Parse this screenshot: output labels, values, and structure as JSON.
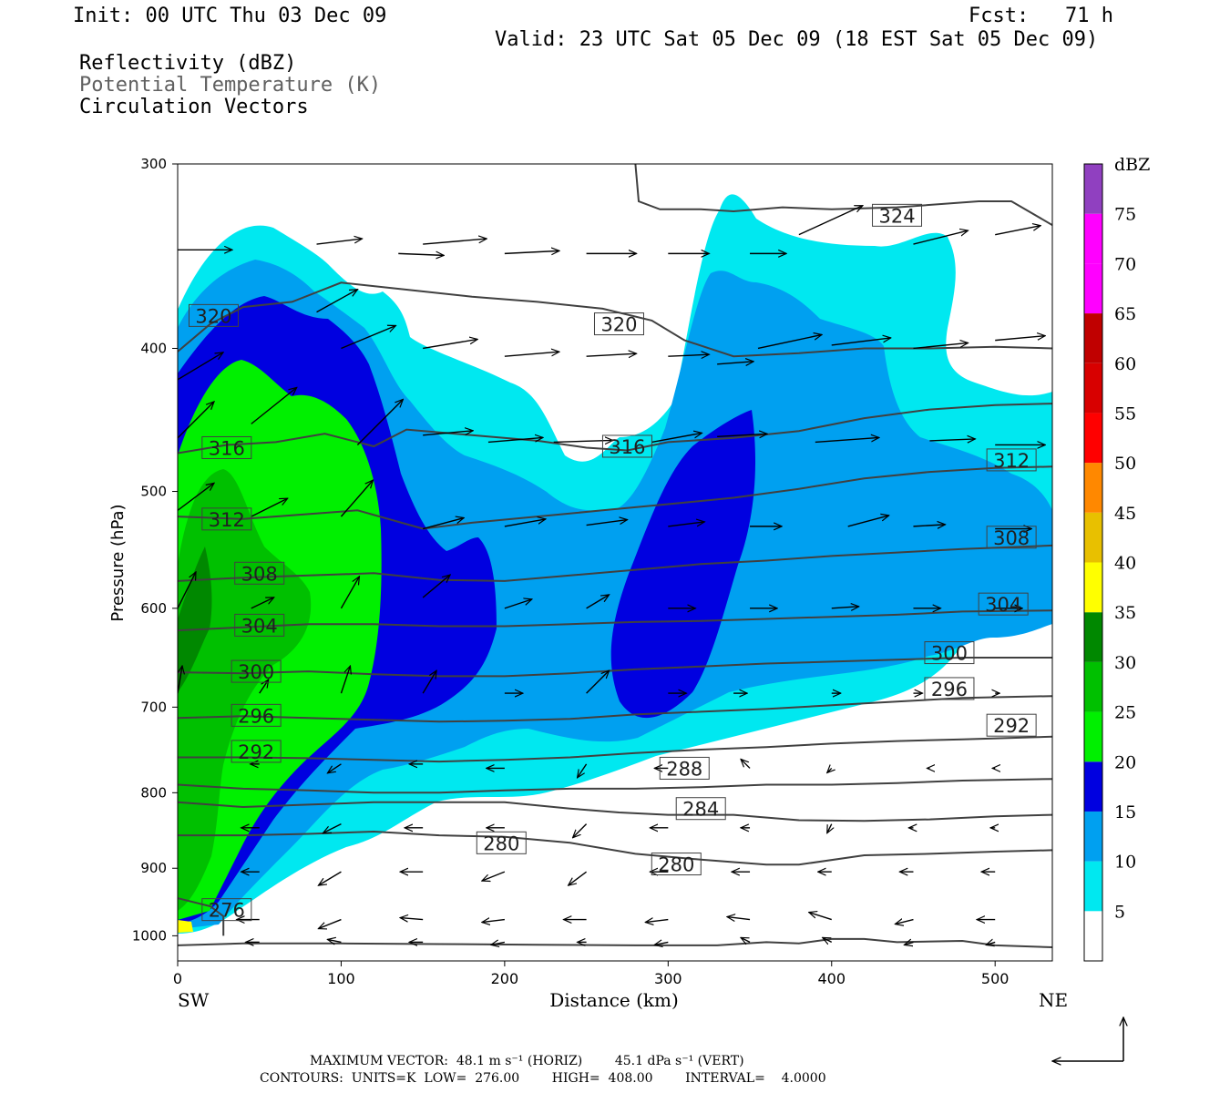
{
  "header": {
    "init": "Init: 00 UTC Thu 03 Dec 09",
    "fcst": "Fcst:   71 h",
    "valid": "Valid: 23 UTC Sat 05 Dec 09 (18 EST Sat 05 Dec 09)",
    "field1": "Reflectivity (dBZ)",
    "field2": "Potential Temperature (K)",
    "field3": "Circulation Vectors"
  },
  "footer": {
    "line1": "MAXIMUM VECTOR:  48.1 m s⁻¹ (HORIZ)        45.1 dPa s⁻¹ (VERT)",
    "line2": "CONTOURS:  UNITS=K  LOW=  276.00        HIGH=  408.00        INTERVAL=    4.0000"
  },
  "colors": {
    "c5": "#00e8f0",
    "c10": "#00a0f0",
    "c15": "#0000e0",
    "c20": "#00f000",
    "c25": "#00c000",
    "c30": "#008800",
    "c35": "#ffff00",
    "c40": "#e8c000",
    "c45": "#ff8800",
    "c50": "#ff0000",
    "c55": "#d80000",
    "c60": "#c00000",
    "c65": "#ff00ff",
    "c70": "#ff00ff",
    "c75": "#9040c0",
    "contour": "#404040"
  },
  "chart_data": {
    "type": "heatmap",
    "title": "Reflectivity (dBZ)",
    "xlabel": "Distance (km)",
    "ylabel": "Pressure (hPa)",
    "xlim": [
      0,
      535
    ],
    "ylim": [
      300,
      1040
    ],
    "y_scale": "log-pressure",
    "x_ticks": [
      "0",
      "100",
      "200",
      "300",
      "400",
      "500"
    ],
    "y_ticks": [
      "300",
      "400",
      "500",
      "600",
      "700",
      "800",
      "900",
      "1000"
    ],
    "x_end_labels": {
      "left": "SW",
      "right": "NE"
    },
    "colorbar": {
      "label": "dBZ",
      "levels": [
        "5",
        "10",
        "15",
        "20",
        "25",
        "30",
        "35",
        "40",
        "45",
        "50",
        "55",
        "60",
        "65",
        "70",
        "75"
      ]
    },
    "contour_labels": [
      {
        "text": "320",
        "x": 22,
        "p": 380
      },
      {
        "text": "320",
        "x": 270,
        "p": 385
      },
      {
        "text": "324",
        "x": 440,
        "p": 325
      },
      {
        "text": "316",
        "x": 30,
        "p": 467
      },
      {
        "text": "316",
        "x": 275,
        "p": 466
      },
      {
        "text": "312",
        "x": 30,
        "p": 522
      },
      {
        "text": "312",
        "x": 510,
        "p": 476
      },
      {
        "text": "308",
        "x": 50,
        "p": 568
      },
      {
        "text": "308",
        "x": 510,
        "p": 537
      },
      {
        "text": "304",
        "x": 50,
        "p": 616
      },
      {
        "text": "304",
        "x": 505,
        "p": 596
      },
      {
        "text": "300",
        "x": 48,
        "p": 662
      },
      {
        "text": "300",
        "x": 472,
        "p": 643
      },
      {
        "text": "296",
        "x": 48,
        "p": 709
      },
      {
        "text": "296",
        "x": 472,
        "p": 680
      },
      {
        "text": "292",
        "x": 48,
        "p": 750
      },
      {
        "text": "292",
        "x": 510,
        "p": 720
      },
      {
        "text": "288",
        "x": 310,
        "p": 770
      },
      {
        "text": "284",
        "x": 320,
        "p": 820
      },
      {
        "text": "280",
        "x": 198,
        "p": 865
      },
      {
        "text": "280",
        "x": 305,
        "p": 894
      },
      {
        "text": "276",
        "x": 30,
        "p": 960
      }
    ]
  }
}
